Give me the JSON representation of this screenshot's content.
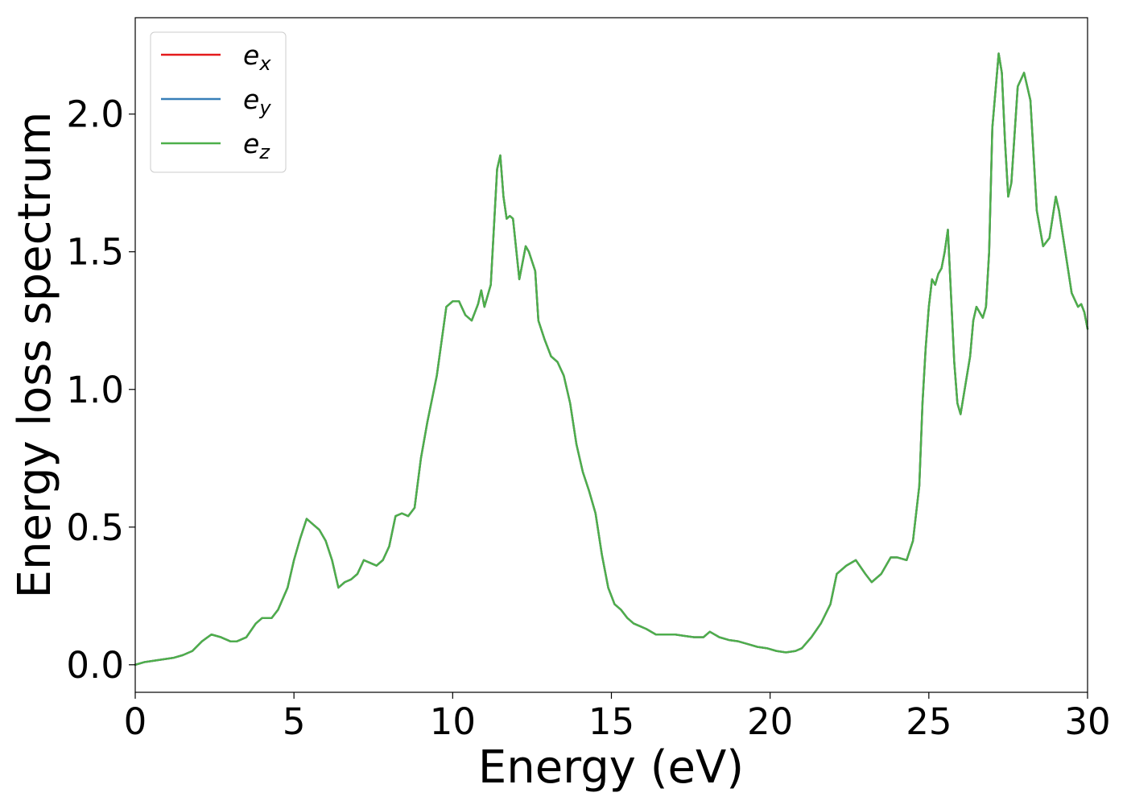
{
  "chart_data": {
    "type": "line",
    "title": "",
    "xlabel": "Energy (eV)",
    "ylabel": "Energy loss spectrum",
    "xlim": [
      0,
      30
    ],
    "ylim": [
      -0.1,
      2.35
    ],
    "xticks": [
      "0",
      "5",
      "10",
      "15",
      "20",
      "25",
      "30"
    ],
    "yticks": [
      "0.0",
      "0.5",
      "1.0",
      "1.5",
      "2.0"
    ],
    "grid": false,
    "legend_position": "top-left",
    "series": [
      {
        "name": "e_x",
        "legend_base": "e",
        "legend_sub": "x",
        "color": "#e41a1c",
        "x": [
          0,
          0.3,
          0.6,
          0.9,
          1.2,
          1.5,
          1.8,
          2.1,
          2.4,
          2.7,
          3.0,
          3.2,
          3.5,
          3.8,
          4.0,
          4.3,
          4.5,
          4.8,
          5.0,
          5.2,
          5.4,
          5.6,
          5.8,
          6.0,
          6.2,
          6.4,
          6.6,
          6.8,
          7.0,
          7.2,
          7.4,
          7.6,
          7.8,
          8.0,
          8.2,
          8.4,
          8.6,
          8.8,
          9.0,
          9.2,
          9.5,
          9.8,
          10.0,
          10.2,
          10.4,
          10.6,
          10.8,
          10.9,
          11.0,
          11.2,
          11.4,
          11.5,
          11.6,
          11.7,
          11.8,
          11.9,
          12.1,
          12.3,
          12.4,
          12.6,
          12.7,
          12.9,
          13.1,
          13.3,
          13.5,
          13.7,
          13.9,
          14.1,
          14.3,
          14.5,
          14.7,
          14.9,
          15.1,
          15.3,
          15.5,
          15.7,
          15.9,
          16.1,
          16.4,
          16.7,
          17.0,
          17.3,
          17.6,
          17.9,
          18.1,
          18.4,
          18.7,
          19.0,
          19.3,
          19.6,
          19.9,
          20.2,
          20.5,
          20.8,
          21.0,
          21.3,
          21.6,
          21.9,
          22.1,
          22.4,
          22.7,
          23.0,
          23.2,
          23.5,
          23.8,
          24.0,
          24.3,
          24.5,
          24.7,
          24.8,
          24.9,
          25.0,
          25.1,
          25.2,
          25.3,
          25.4,
          25.5,
          25.6,
          25.8,
          25.9,
          26.0,
          26.1,
          26.3,
          26.4,
          26.5,
          26.6,
          26.7,
          26.8,
          26.9,
          27.0,
          27.2,
          27.3,
          27.4,
          27.5,
          27.6,
          27.8,
          28.0,
          28.2,
          28.4,
          28.6,
          28.8,
          29.0,
          29.1,
          29.3,
          29.5,
          29.7,
          29.8,
          29.9,
          30.0
        ],
        "y": [
          0.0,
          0.01,
          0.015,
          0.02,
          0.025,
          0.035,
          0.05,
          0.085,
          0.11,
          0.1,
          0.085,
          0.085,
          0.1,
          0.15,
          0.17,
          0.17,
          0.2,
          0.28,
          0.38,
          0.46,
          0.53,
          0.51,
          0.49,
          0.45,
          0.38,
          0.28,
          0.3,
          0.31,
          0.33,
          0.38,
          0.37,
          0.36,
          0.38,
          0.43,
          0.54,
          0.55,
          0.54,
          0.57,
          0.75,
          0.88,
          1.05,
          1.3,
          1.32,
          1.32,
          1.27,
          1.25,
          1.31,
          1.36,
          1.3,
          1.38,
          1.8,
          1.85,
          1.7,
          1.62,
          1.63,
          1.62,
          1.4,
          1.52,
          1.5,
          1.43,
          1.25,
          1.18,
          1.12,
          1.1,
          1.05,
          0.95,
          0.8,
          0.7,
          0.63,
          0.55,
          0.4,
          0.28,
          0.22,
          0.2,
          0.17,
          0.15,
          0.14,
          0.13,
          0.11,
          0.11,
          0.11,
          0.105,
          0.1,
          0.1,
          0.12,
          0.1,
          0.09,
          0.085,
          0.075,
          0.065,
          0.06,
          0.05,
          0.045,
          0.05,
          0.06,
          0.1,
          0.15,
          0.22,
          0.33,
          0.36,
          0.38,
          0.33,
          0.3,
          0.33,
          0.39,
          0.39,
          0.38,
          0.45,
          0.65,
          0.95,
          1.15,
          1.3,
          1.4,
          1.38,
          1.42,
          1.44,
          1.5,
          1.58,
          1.1,
          0.95,
          0.91,
          0.98,
          1.12,
          1.25,
          1.3,
          1.28,
          1.26,
          1.3,
          1.5,
          1.95,
          2.22,
          2.15,
          1.9,
          1.7,
          1.75,
          2.1,
          2.15,
          2.05,
          1.65,
          1.52,
          1.55,
          1.7,
          1.65,
          1.5,
          1.35,
          1.3,
          1.31,
          1.28,
          1.22
        ]
      },
      {
        "name": "e_y",
        "legend_base": "e",
        "legend_sub": "y",
        "color": "#377eb8",
        "x": [
          0,
          0.3,
          0.6,
          0.9,
          1.2,
          1.5,
          1.8,
          2.1,
          2.4,
          2.7,
          3.0,
          3.2,
          3.5,
          3.8,
          4.0,
          4.3,
          4.5,
          4.8,
          5.0,
          5.2,
          5.4,
          5.6,
          5.8,
          6.0,
          6.2,
          6.4,
          6.6,
          6.8,
          7.0,
          7.2,
          7.4,
          7.6,
          7.8,
          8.0,
          8.2,
          8.4,
          8.6,
          8.8,
          9.0,
          9.2,
          9.5,
          9.8,
          10.0,
          10.2,
          10.4,
          10.6,
          10.8,
          10.9,
          11.0,
          11.2,
          11.4,
          11.5,
          11.6,
          11.7,
          11.8,
          11.9,
          12.1,
          12.3,
          12.4,
          12.6,
          12.7,
          12.9,
          13.1,
          13.3,
          13.5,
          13.7,
          13.9,
          14.1,
          14.3,
          14.5,
          14.7,
          14.9,
          15.1,
          15.3,
          15.5,
          15.7,
          15.9,
          16.1,
          16.4,
          16.7,
          17.0,
          17.3,
          17.6,
          17.9,
          18.1,
          18.4,
          18.7,
          19.0,
          19.3,
          19.6,
          19.9,
          20.2,
          20.5,
          20.8,
          21.0,
          21.3,
          21.6,
          21.9,
          22.1,
          22.4,
          22.7,
          23.0,
          23.2,
          23.5,
          23.8,
          24.0,
          24.3,
          24.5,
          24.7,
          24.8,
          24.9,
          25.0,
          25.1,
          25.2,
          25.3,
          25.4,
          25.5,
          25.6,
          25.8,
          25.9,
          26.0,
          26.1,
          26.3,
          26.4,
          26.5,
          26.6,
          26.7,
          26.8,
          26.9,
          27.0,
          27.2,
          27.3,
          27.4,
          27.5,
          27.6,
          27.8,
          28.0,
          28.2,
          28.4,
          28.6,
          28.8,
          29.0,
          29.1,
          29.3,
          29.5,
          29.7,
          29.8,
          29.9,
          30.0
        ],
        "y": [
          0.0,
          0.01,
          0.015,
          0.02,
          0.025,
          0.035,
          0.05,
          0.085,
          0.11,
          0.1,
          0.085,
          0.085,
          0.1,
          0.15,
          0.17,
          0.17,
          0.2,
          0.28,
          0.38,
          0.46,
          0.53,
          0.51,
          0.49,
          0.45,
          0.38,
          0.28,
          0.3,
          0.31,
          0.33,
          0.38,
          0.37,
          0.36,
          0.38,
          0.43,
          0.54,
          0.55,
          0.54,
          0.57,
          0.75,
          0.88,
          1.05,
          1.3,
          1.32,
          1.32,
          1.27,
          1.25,
          1.31,
          1.36,
          1.3,
          1.38,
          1.8,
          1.85,
          1.7,
          1.62,
          1.63,
          1.62,
          1.4,
          1.52,
          1.5,
          1.43,
          1.25,
          1.18,
          1.12,
          1.1,
          1.05,
          0.95,
          0.8,
          0.7,
          0.63,
          0.55,
          0.4,
          0.28,
          0.22,
          0.2,
          0.17,
          0.15,
          0.14,
          0.13,
          0.11,
          0.11,
          0.11,
          0.105,
          0.1,
          0.1,
          0.12,
          0.1,
          0.09,
          0.085,
          0.075,
          0.065,
          0.06,
          0.05,
          0.045,
          0.05,
          0.06,
          0.1,
          0.15,
          0.22,
          0.33,
          0.36,
          0.38,
          0.33,
          0.3,
          0.33,
          0.39,
          0.39,
          0.38,
          0.45,
          0.65,
          0.95,
          1.15,
          1.3,
          1.4,
          1.38,
          1.42,
          1.44,
          1.5,
          1.58,
          1.1,
          0.95,
          0.91,
          0.98,
          1.12,
          1.25,
          1.3,
          1.28,
          1.26,
          1.3,
          1.5,
          1.95,
          2.22,
          2.15,
          1.9,
          1.7,
          1.75,
          2.1,
          2.15,
          2.05,
          1.65,
          1.52,
          1.55,
          1.7,
          1.65,
          1.5,
          1.35,
          1.3,
          1.31,
          1.28,
          1.22
        ]
      },
      {
        "name": "e_z",
        "legend_base": "e",
        "legend_sub": "z",
        "color": "#4daf4a",
        "x": [
          0,
          0.3,
          0.6,
          0.9,
          1.2,
          1.5,
          1.8,
          2.1,
          2.4,
          2.7,
          3.0,
          3.2,
          3.5,
          3.8,
          4.0,
          4.3,
          4.5,
          4.8,
          5.0,
          5.2,
          5.4,
          5.6,
          5.8,
          6.0,
          6.2,
          6.4,
          6.6,
          6.8,
          7.0,
          7.2,
          7.4,
          7.6,
          7.8,
          8.0,
          8.2,
          8.4,
          8.6,
          8.8,
          9.0,
          9.2,
          9.5,
          9.8,
          10.0,
          10.2,
          10.4,
          10.6,
          10.8,
          10.9,
          11.0,
          11.2,
          11.4,
          11.5,
          11.6,
          11.7,
          11.8,
          11.9,
          12.1,
          12.3,
          12.4,
          12.6,
          12.7,
          12.9,
          13.1,
          13.3,
          13.5,
          13.7,
          13.9,
          14.1,
          14.3,
          14.5,
          14.7,
          14.9,
          15.1,
          15.3,
          15.5,
          15.7,
          15.9,
          16.1,
          16.4,
          16.7,
          17.0,
          17.3,
          17.6,
          17.9,
          18.1,
          18.4,
          18.7,
          19.0,
          19.3,
          19.6,
          19.9,
          20.2,
          20.5,
          20.8,
          21.0,
          21.3,
          21.6,
          21.9,
          22.1,
          22.4,
          22.7,
          23.0,
          23.2,
          23.5,
          23.8,
          24.0,
          24.3,
          24.5,
          24.7,
          24.8,
          24.9,
          25.0,
          25.1,
          25.2,
          25.3,
          25.4,
          25.5,
          25.6,
          25.8,
          25.9,
          26.0,
          26.1,
          26.3,
          26.4,
          26.5,
          26.6,
          26.7,
          26.8,
          26.9,
          27.0,
          27.2,
          27.3,
          27.4,
          27.5,
          27.6,
          27.8,
          28.0,
          28.2,
          28.4,
          28.6,
          28.8,
          29.0,
          29.1,
          29.3,
          29.5,
          29.7,
          29.8,
          29.9,
          30.0
        ],
        "y": [
          0.0,
          0.01,
          0.015,
          0.02,
          0.025,
          0.035,
          0.05,
          0.085,
          0.11,
          0.1,
          0.085,
          0.085,
          0.1,
          0.15,
          0.17,
          0.17,
          0.2,
          0.28,
          0.38,
          0.46,
          0.53,
          0.51,
          0.49,
          0.45,
          0.38,
          0.28,
          0.3,
          0.31,
          0.33,
          0.38,
          0.37,
          0.36,
          0.38,
          0.43,
          0.54,
          0.55,
          0.54,
          0.57,
          0.75,
          0.88,
          1.05,
          1.3,
          1.32,
          1.32,
          1.27,
          1.25,
          1.31,
          1.36,
          1.3,
          1.38,
          1.8,
          1.85,
          1.7,
          1.62,
          1.63,
          1.62,
          1.4,
          1.52,
          1.5,
          1.43,
          1.25,
          1.18,
          1.12,
          1.1,
          1.05,
          0.95,
          0.8,
          0.7,
          0.63,
          0.55,
          0.4,
          0.28,
          0.22,
          0.2,
          0.17,
          0.15,
          0.14,
          0.13,
          0.11,
          0.11,
          0.11,
          0.105,
          0.1,
          0.1,
          0.12,
          0.1,
          0.09,
          0.085,
          0.075,
          0.065,
          0.06,
          0.05,
          0.045,
          0.05,
          0.06,
          0.1,
          0.15,
          0.22,
          0.33,
          0.36,
          0.38,
          0.33,
          0.3,
          0.33,
          0.39,
          0.39,
          0.38,
          0.45,
          0.65,
          0.95,
          1.15,
          1.3,
          1.4,
          1.38,
          1.42,
          1.44,
          1.5,
          1.58,
          1.1,
          0.95,
          0.91,
          0.98,
          1.12,
          1.25,
          1.3,
          1.28,
          1.26,
          1.3,
          1.5,
          1.95,
          2.22,
          2.15,
          1.9,
          1.7,
          1.75,
          2.1,
          2.15,
          2.05,
          1.65,
          1.52,
          1.55,
          1.7,
          1.65,
          1.5,
          1.35,
          1.3,
          1.31,
          1.28,
          1.22
        ]
      }
    ]
  }
}
